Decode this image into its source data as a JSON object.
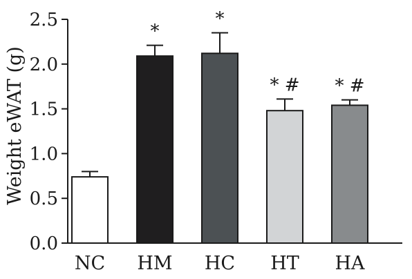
{
  "chart_data": {
    "type": "bar",
    "title": "",
    "xlabel": "",
    "ylabel": "Weight eWAT (g)",
    "ylim": [
      0,
      2.5
    ],
    "yticks": [
      0.0,
      0.5,
      1.0,
      1.5,
      2.0,
      2.5
    ],
    "ytick_labels": [
      "0.0",
      "0.5",
      "1.0",
      "1.5",
      "2.0",
      "2.5"
    ],
    "grid": false,
    "legend": "none",
    "categories": [
      "NC",
      "HM",
      "HC",
      "HT",
      "HA"
    ],
    "values": [
      0.74,
      2.09,
      2.12,
      1.48,
      1.54
    ],
    "errors": [
      0.06,
      0.12,
      0.23,
      0.13,
      0.06
    ],
    "annotations": [
      "",
      "*",
      "*",
      "* #",
      "* #"
    ],
    "colors": [
      "#ffffff",
      "#1f1e1f",
      "#4c5154",
      "#d2d4d6",
      "#888b8d"
    ]
  }
}
